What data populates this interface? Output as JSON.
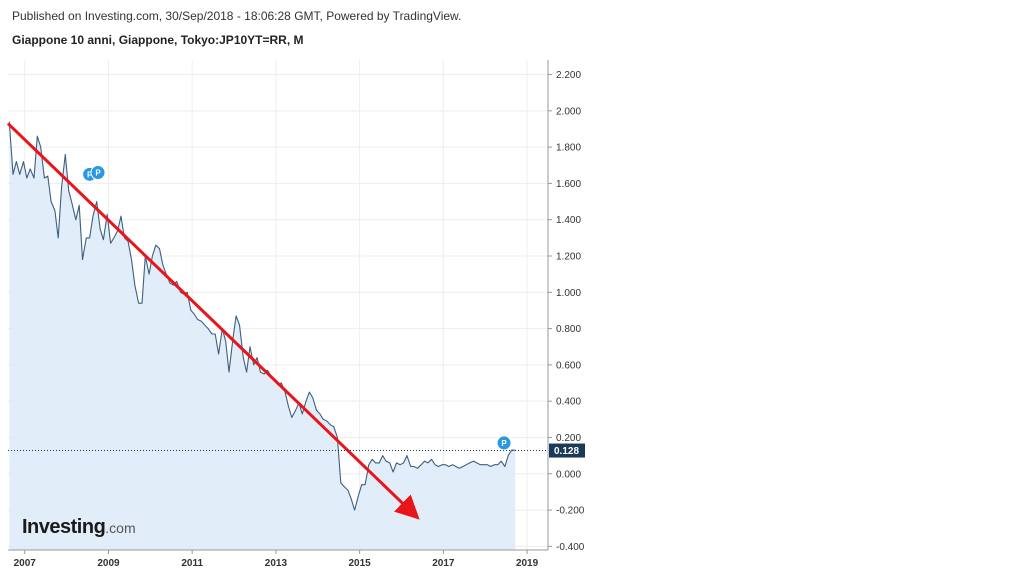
{
  "header": {
    "published": "Published on Investing.com, 30/Sep/2018 - 18:06:28 GMT, Powered by TradingView.",
    "title": "Giappone 10 anni, Giappone, Tokyo:JP10YT=RR, M"
  },
  "logo": {
    "main": "Investing",
    "suffix": ".com"
  },
  "chart_data": {
    "type": "area",
    "title": "Giappone 10 anni, Giappone, Tokyo:JP10YT=RR, M",
    "xlim": [
      2006.6,
      2019.5
    ],
    "ylim": [
      -0.42,
      2.28
    ],
    "y_ticks": [
      "2.200",
      "2.000",
      "1.800",
      "1.600",
      "1.400",
      "1.200",
      "1.000",
      "0.800",
      "0.600",
      "0.400",
      "0.200",
      "0.000",
      "-0.200",
      "-0.400"
    ],
    "y_tick_values": [
      2.2,
      2.0,
      1.8,
      1.6,
      1.4,
      1.2,
      1.0,
      0.8,
      0.6,
      0.4,
      0.2,
      0.0,
      -0.2,
      -0.4
    ],
    "x_ticks": [
      "2007",
      "2009",
      "2011",
      "2013",
      "2015",
      "2017",
      "2019"
    ],
    "x_tick_values": [
      2007,
      2009,
      2011,
      2013,
      2015,
      2017,
      2019
    ],
    "grid": true,
    "colors": {
      "line": "#3d5f80",
      "fill": "#dceaf8",
      "grid": "#eeeeee",
      "arrow": "#e8151b",
      "marker": "#2a98e0",
      "last_value_bg": "#1b3a57"
    },
    "last_value": 0.128,
    "last_value_label": "0.128",
    "series": [
      {
        "x": [
          2006.63,
          2006.72,
          2006.8,
          2006.88,
          2006.97,
          2007.05,
          2007.13,
          2007.22,
          2007.3,
          2007.38,
          2007.47,
          2007.55,
          2007.63,
          2007.72,
          2007.8,
          2007.88,
          2007.97,
          2008.05,
          2008.13,
          2008.22,
          2008.3,
          2008.38,
          2008.47,
          2008.55,
          2008.63,
          2008.72,
          2008.8,
          2008.88,
          2008.97,
          2009.05,
          2009.13,
          2009.22,
          2009.3,
          2009.38,
          2009.47,
          2009.55,
          2009.63,
          2009.72,
          2009.8,
          2009.88,
          2009.97,
          2010.05,
          2010.13,
          2010.22,
          2010.3,
          2010.38,
          2010.47,
          2010.55,
          2010.63,
          2010.72,
          2010.8,
          2010.88,
          2010.97,
          2011.05,
          2011.13,
          2011.22,
          2011.3,
          2011.38,
          2011.47,
          2011.55,
          2011.63,
          2011.72,
          2011.8,
          2011.88,
          2011.97,
          2012.05,
          2012.13,
          2012.22,
          2012.3,
          2012.38,
          2012.47,
          2012.55,
          2012.63,
          2012.72,
          2012.8,
          2012.88,
          2012.97,
          2013.05,
          2013.13,
          2013.22,
          2013.3,
          2013.38,
          2013.47,
          2013.55,
          2013.63,
          2013.72,
          2013.8,
          2013.88,
          2013.97,
          2014.05,
          2014.13,
          2014.22,
          2014.3,
          2014.38,
          2014.47,
          2014.55,
          2014.63,
          2014.72,
          2014.8,
          2014.88,
          2014.97,
          2015.05,
          2015.13,
          2015.22,
          2015.3,
          2015.38,
          2015.47,
          2015.55,
          2015.63,
          2015.72,
          2015.8,
          2015.88,
          2015.97,
          2016.05,
          2016.13,
          2016.22,
          2016.3,
          2016.38,
          2016.47,
          2016.55,
          2016.63,
          2016.72,
          2016.8,
          2016.88,
          2016.97,
          2017.05,
          2017.13,
          2017.22,
          2017.3,
          2017.38,
          2017.47,
          2017.55,
          2017.63,
          2017.72,
          2017.8,
          2017.88,
          2017.97,
          2018.05,
          2018.13,
          2018.22,
          2018.3,
          2018.38,
          2018.47,
          2018.55,
          2018.63,
          2018.72
        ],
        "y": [
          1.94,
          1.65,
          1.72,
          1.65,
          1.72,
          1.63,
          1.68,
          1.63,
          1.86,
          1.8,
          1.63,
          1.64,
          1.5,
          1.45,
          1.3,
          1.58,
          1.76,
          1.56,
          1.49,
          1.4,
          1.48,
          1.18,
          1.3,
          1.3,
          1.42,
          1.5,
          1.35,
          1.29,
          1.43,
          1.27,
          1.3,
          1.34,
          1.42,
          1.3,
          1.28,
          1.18,
          1.04,
          0.94,
          0.94,
          1.2,
          1.1,
          1.2,
          1.26,
          1.24,
          1.15,
          1.1,
          1.05,
          1.04,
          1.06,
          1.0,
          0.99,
          1.0,
          0.9,
          0.88,
          0.85,
          0.84,
          0.82,
          0.8,
          0.77,
          0.77,
          0.66,
          0.8,
          0.73,
          0.56,
          0.74,
          0.87,
          0.82,
          0.64,
          0.56,
          0.7,
          0.6,
          0.64,
          0.56,
          0.55,
          0.57,
          0.54,
          0.51,
          0.49,
          0.5,
          0.45,
          0.37,
          0.31,
          0.35,
          0.39,
          0.33,
          0.4,
          0.45,
          0.42,
          0.35,
          0.33,
          0.3,
          0.29,
          0.27,
          0.26,
          0.2,
          -0.05,
          -0.07,
          -0.09,
          -0.14,
          -0.2,
          -0.12,
          -0.06,
          -0.06,
          0.05,
          0.08,
          0.06,
          0.06,
          0.1,
          0.07,
          0.06,
          0.01,
          0.06,
          0.05,
          0.06,
          0.1,
          0.04,
          0.04,
          0.03,
          0.05,
          0.07,
          0.06,
          0.08,
          0.05,
          0.04,
          0.05,
          0.05,
          0.04,
          0.05,
          0.04,
          0.03,
          0.04,
          0.05,
          0.06,
          0.07,
          0.06,
          0.05,
          0.05,
          0.05,
          0.04,
          0.05,
          0.05,
          0.07,
          0.04,
          0.1,
          0.13,
          0.13
        ]
      }
    ],
    "markers": [
      {
        "label": "P",
        "x": 2008.55,
        "y": 1.65
      },
      {
        "label": "P",
        "x": 2008.75,
        "y": 1.66
      },
      {
        "label": "P",
        "x": 2018.45,
        "y": 0.17
      }
    ],
    "annotation_arrow": {
      "from": {
        "x": 2006.6,
        "y": 1.93
      },
      "to": {
        "x": 2016.33,
        "y": -0.23
      }
    }
  }
}
